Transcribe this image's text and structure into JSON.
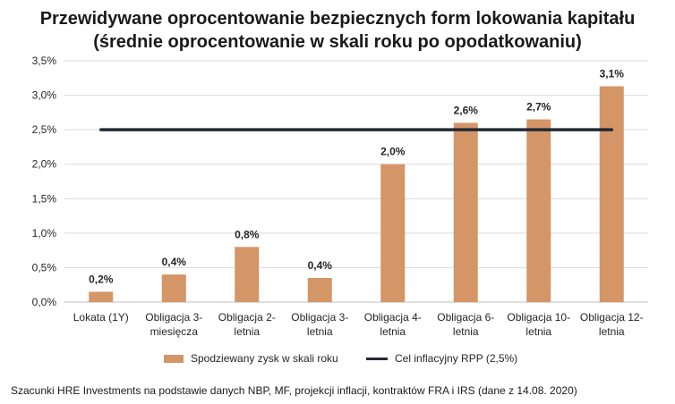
{
  "title_line1": "Przewidywane oprocentowanie bezpiecznych form lokowania kapitału",
  "title_line2": "(średnie oprocentowanie w skali roku po opodatkowaniu)",
  "source": "Szacunki HRE Investments na podstawie danych NBP, MF, projekcji inflacji, kontraktów FRA i IRS (dane z 14.08. 2020)",
  "colors": {
    "bar": "#d49567",
    "line": "#222a35",
    "grid": "#d9d9d9",
    "text": "#262626"
  },
  "chart_data": {
    "type": "bar",
    "categories": [
      [
        "Lokata (1Y)"
      ],
      [
        "Obligacja 3-",
        "miesięcza"
      ],
      [
        "Obligacja 2-",
        "letnia"
      ],
      [
        "Obligacja 3-",
        "letnia"
      ],
      [
        "Obligacja 4-",
        "letnia"
      ],
      [
        "Obligacja 6-",
        "letnia"
      ],
      [
        "Obligacja 10-",
        "letnia"
      ],
      [
        "Obligacja 12-",
        "letnia"
      ]
    ],
    "series": [
      {
        "name": "Spodziewany zysk w skali roku",
        "type": "bar",
        "values": [
          0.15,
          0.4,
          0.8,
          0.35,
          2.0,
          2.6,
          2.65,
          3.13
        ],
        "labels": [
          "0,2%",
          "0,4%",
          "0,8%",
          "0,4%",
          "2,0%",
          "2,6%",
          "2,7%",
          "3,1%"
        ]
      },
      {
        "name": "Cel inflacyjny RPP (2,5%)",
        "type": "line",
        "values": [
          2.5,
          2.5,
          2.5,
          2.5,
          2.5,
          2.5,
          2.5,
          2.5
        ]
      }
    ],
    "ylim": [
      0,
      3.5
    ],
    "yticks": [
      "0,0%",
      "0,5%",
      "1,0%",
      "1,5%",
      "2,0%",
      "2,5%",
      "3,0%",
      "3,5%"
    ],
    "grid": true,
    "legend_position": "bottom"
  }
}
